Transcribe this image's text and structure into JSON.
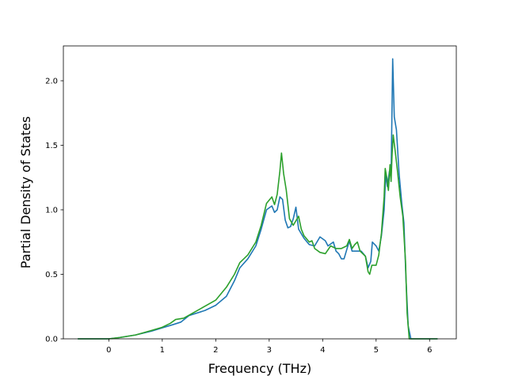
{
  "chart_data": {
    "type": "line",
    "title": "",
    "xlabel": "Frequency (THz)",
    "ylabel": "Partial Density of States",
    "xlim": [
      -0.85,
      6.5
    ],
    "ylim": [
      0.0,
      2.27
    ],
    "xticks": [
      0,
      1,
      2,
      3,
      4,
      5,
      6
    ],
    "xtick_labels": [
      "0",
      "1",
      "2",
      "3",
      "4",
      "5",
      "6"
    ],
    "yticks": [
      0.0,
      0.5,
      1.0,
      1.5,
      2.0
    ],
    "ytick_labels": [
      "0.0",
      "0.5",
      "1.0",
      "1.5",
      "2.0"
    ],
    "grid": false,
    "legend": "none",
    "series": [
      {
        "color": "#1f77b4",
        "points": [
          [
            -0.58,
            0.0
          ],
          [
            0.0,
            0.0
          ],
          [
            0.2,
            0.01
          ],
          [
            0.5,
            0.03
          ],
          [
            0.8,
            0.06
          ],
          [
            1.0,
            0.085
          ],
          [
            1.2,
            0.11
          ],
          [
            1.35,
            0.13
          ],
          [
            1.5,
            0.18
          ],
          [
            1.8,
            0.22
          ],
          [
            2.0,
            0.26
          ],
          [
            2.2,
            0.33
          ],
          [
            2.35,
            0.45
          ],
          [
            2.45,
            0.55
          ],
          [
            2.6,
            0.62
          ],
          [
            2.75,
            0.72
          ],
          [
            2.85,
            0.85
          ],
          [
            2.95,
            1.0
          ],
          [
            3.05,
            1.03
          ],
          [
            3.1,
            0.98
          ],
          [
            3.15,
            1.0
          ],
          [
            3.2,
            1.1
          ],
          [
            3.25,
            1.08
          ],
          [
            3.3,
            0.92
          ],
          [
            3.35,
            0.86
          ],
          [
            3.4,
            0.87
          ],
          [
            3.45,
            0.93
          ],
          [
            3.5,
            1.02
          ],
          [
            3.55,
            0.85
          ],
          [
            3.65,
            0.78
          ],
          [
            3.75,
            0.73
          ],
          [
            3.85,
            0.72
          ],
          [
            3.95,
            0.79
          ],
          [
            4.05,
            0.76
          ],
          [
            4.1,
            0.72
          ],
          [
            4.2,
            0.75
          ],
          [
            4.25,
            0.68
          ],
          [
            4.3,
            0.66
          ],
          [
            4.35,
            0.62
          ],
          [
            4.4,
            0.62
          ],
          [
            4.5,
            0.76
          ],
          [
            4.55,
            0.68
          ],
          [
            4.65,
            0.68
          ],
          [
            4.72,
            0.68
          ],
          [
            4.8,
            0.64
          ],
          [
            4.85,
            0.55
          ],
          [
            4.9,
            0.6
          ],
          [
            4.93,
            0.75
          ],
          [
            5.0,
            0.72
          ],
          [
            5.05,
            0.68
          ],
          [
            5.1,
            0.8
          ],
          [
            5.15,
            1.0
          ],
          [
            5.18,
            1.28
          ],
          [
            5.21,
            1.18
          ],
          [
            5.25,
            1.3
          ],
          [
            5.28,
            1.25
          ],
          [
            5.31,
            2.17
          ],
          [
            5.34,
            1.72
          ],
          [
            5.38,
            1.62
          ],
          [
            5.43,
            1.28
          ],
          [
            5.48,
            1.05
          ],
          [
            5.52,
            0.9
          ],
          [
            5.56,
            0.45
          ],
          [
            5.6,
            0.1
          ],
          [
            5.65,
            0.0
          ],
          [
            6.15,
            0.0
          ]
        ]
      },
      {
        "color": "#2ca02c",
        "points": [
          [
            -0.58,
            0.0
          ],
          [
            0.0,
            0.0
          ],
          [
            0.2,
            0.01
          ],
          [
            0.5,
            0.03
          ],
          [
            0.8,
            0.065
          ],
          [
            1.0,
            0.09
          ],
          [
            1.15,
            0.12
          ],
          [
            1.25,
            0.15
          ],
          [
            1.4,
            0.16
          ],
          [
            1.7,
            0.23
          ],
          [
            2.0,
            0.3
          ],
          [
            2.2,
            0.4
          ],
          [
            2.35,
            0.5
          ],
          [
            2.45,
            0.59
          ],
          [
            2.6,
            0.65
          ],
          [
            2.75,
            0.75
          ],
          [
            2.85,
            0.88
          ],
          [
            2.95,
            1.05
          ],
          [
            3.05,
            1.1
          ],
          [
            3.1,
            1.04
          ],
          [
            3.15,
            1.12
          ],
          [
            3.2,
            1.3
          ],
          [
            3.23,
            1.44
          ],
          [
            3.27,
            1.28
          ],
          [
            3.32,
            1.15
          ],
          [
            3.38,
            0.93
          ],
          [
            3.45,
            0.88
          ],
          [
            3.55,
            0.95
          ],
          [
            3.6,
            0.85
          ],
          [
            3.65,
            0.8
          ],
          [
            3.75,
            0.75
          ],
          [
            3.8,
            0.76
          ],
          [
            3.85,
            0.7
          ],
          [
            3.95,
            0.67
          ],
          [
            4.05,
            0.66
          ],
          [
            4.15,
            0.72
          ],
          [
            4.25,
            0.7
          ],
          [
            4.35,
            0.7
          ],
          [
            4.45,
            0.72
          ],
          [
            4.5,
            0.77
          ],
          [
            4.55,
            0.7
          ],
          [
            4.6,
            0.73
          ],
          [
            4.65,
            0.75
          ],
          [
            4.7,
            0.68
          ],
          [
            4.8,
            0.64
          ],
          [
            4.85,
            0.52
          ],
          [
            4.88,
            0.5
          ],
          [
            4.92,
            0.57
          ],
          [
            5.0,
            0.57
          ],
          [
            5.05,
            0.65
          ],
          [
            5.1,
            0.82
          ],
          [
            5.15,
            1.1
          ],
          [
            5.17,
            1.32
          ],
          [
            5.2,
            1.25
          ],
          [
            5.23,
            1.15
          ],
          [
            5.26,
            1.35
          ],
          [
            5.28,
            1.22
          ],
          [
            5.3,
            1.44
          ],
          [
            5.32,
            1.58
          ],
          [
            5.35,
            1.48
          ],
          [
            5.4,
            1.3
          ],
          [
            5.45,
            1.1
          ],
          [
            5.5,
            0.95
          ],
          [
            5.55,
            0.6
          ],
          [
            5.58,
            0.2
          ],
          [
            5.62,
            0.0
          ],
          [
            6.15,
            0.0
          ]
        ]
      }
    ]
  }
}
